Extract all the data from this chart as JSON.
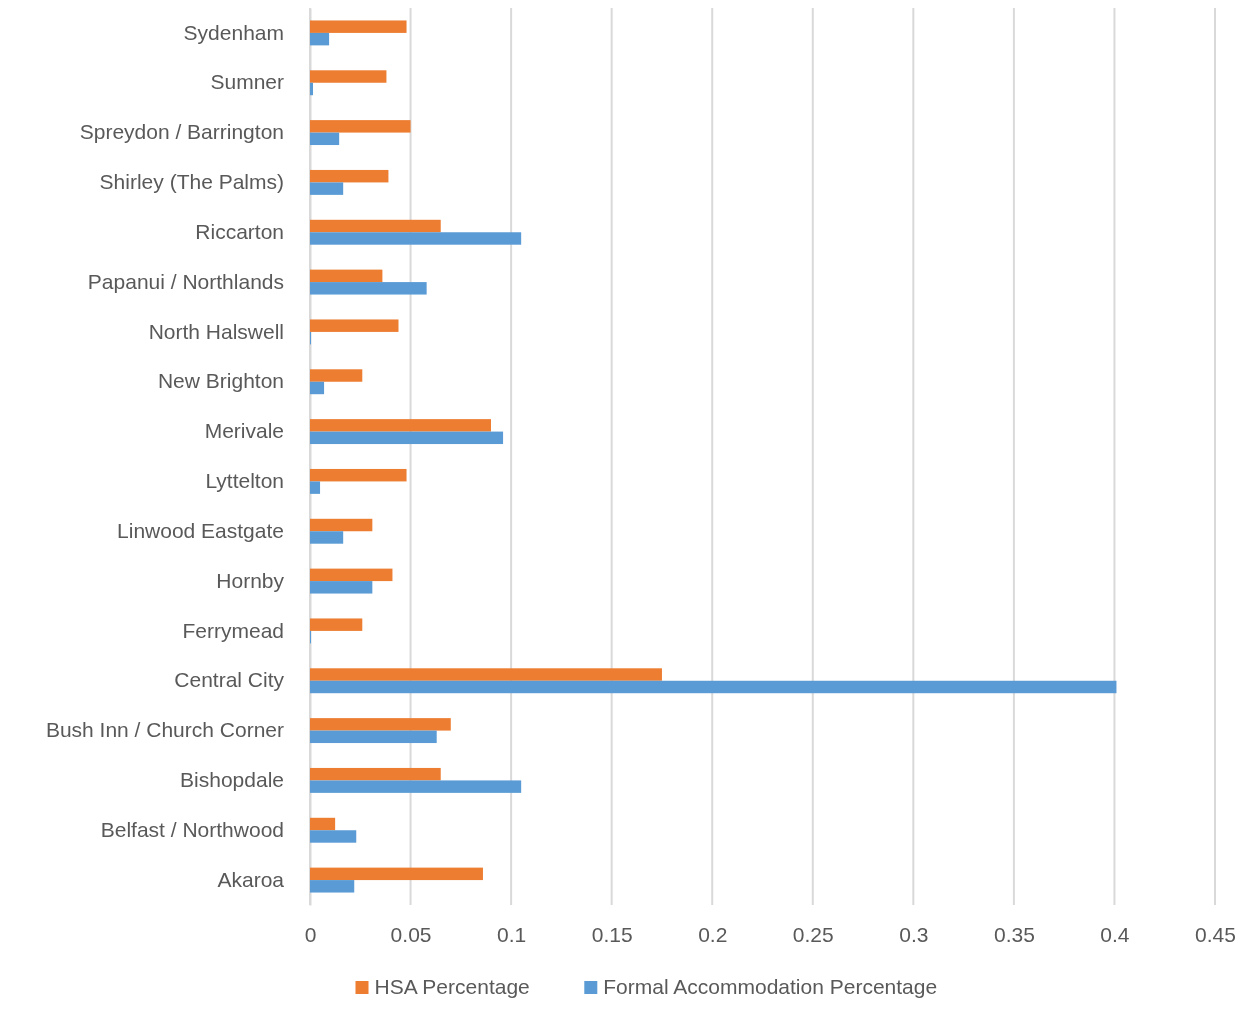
{
  "chart_data": {
    "type": "bar",
    "orientation": "horizontal",
    "categories": [
      "Sydenham",
      "Sumner",
      "Spreydon / Barrington",
      "Shirley (The Palms)",
      "Riccarton",
      "Papanui / Northlands",
      "North Halswell",
      "New Brighton",
      "Merivale",
      "Lyttelton",
      "Linwood Eastgate",
      "Hornby",
      "Ferrymead",
      "Central City",
      "Bush Inn / Church Corner",
      "Bishopdale",
      "Belfast / Northwood",
      "Akaroa"
    ],
    "series": [
      {
        "name": "HSA Percentage",
        "color": "#ed7d31",
        "values": [
          0.048,
          0.038,
          0.05,
          0.039,
          0.065,
          0.036,
          0.044,
          0.026,
          0.09,
          0.048,
          0.031,
          0.041,
          0.026,
          0.175,
          0.07,
          0.065,
          0.0125,
          0.086
        ]
      },
      {
        "name": "Formal Accommodation Percentage",
        "color": "#5b9bd5",
        "values": [
          0.0095,
          0.0015,
          0.0145,
          0.0165,
          0.105,
          0.058,
          0.0005,
          0.007,
          0.096,
          0.005,
          0.0165,
          0.031,
          0.0005,
          0.401,
          0.063,
          0.105,
          0.023,
          0.022
        ]
      }
    ],
    "xlim": [
      0,
      0.45
    ],
    "xticks": [
      0,
      0.05,
      0.1,
      0.15,
      0.2,
      0.25,
      0.3,
      0.35,
      0.4,
      0.45
    ],
    "grid": "x",
    "legend": "bottom"
  }
}
